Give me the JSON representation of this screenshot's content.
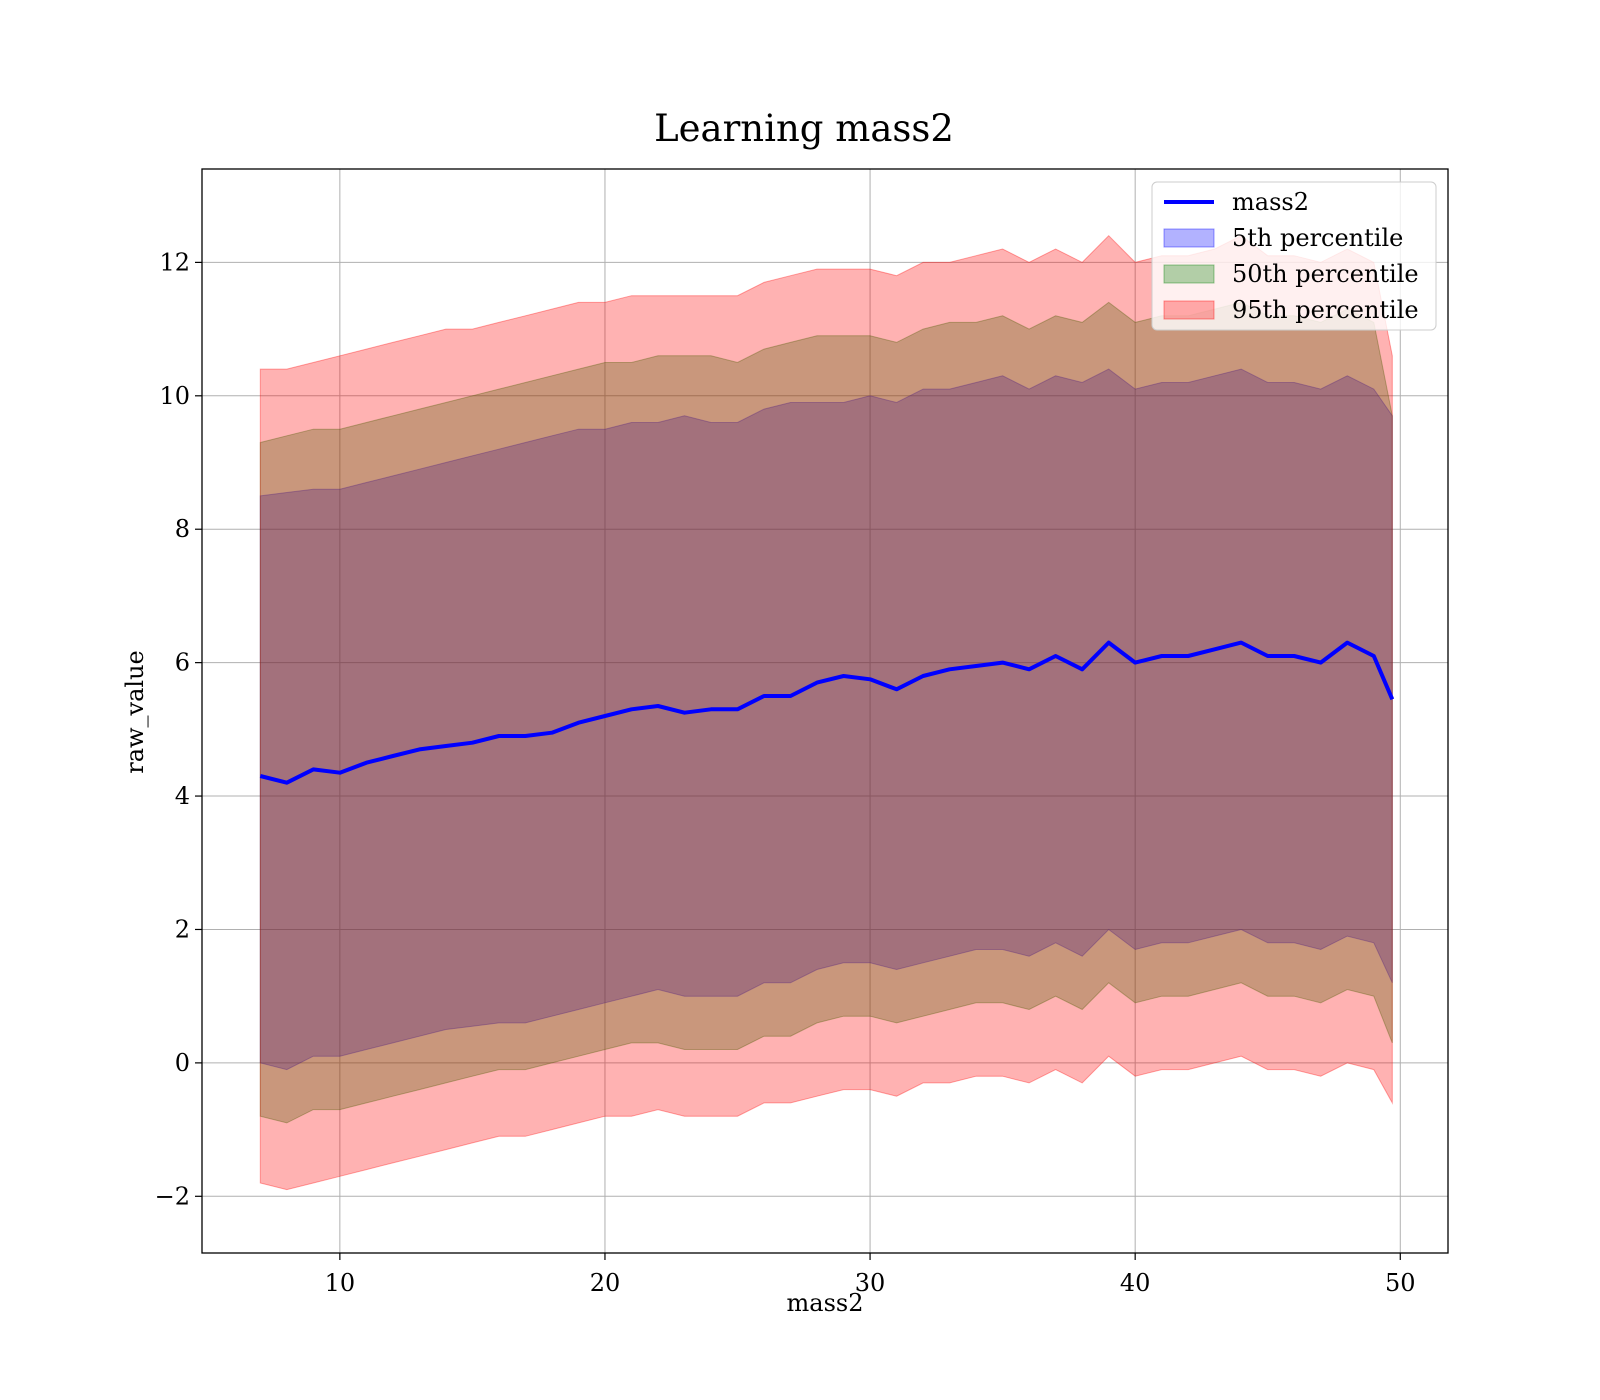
{
  "chart_data": {
    "type": "line",
    "title": "Learning mass2",
    "xlabel": "mass2",
    "ylabel": "raw_value",
    "xlim": [
      4.8,
      51.8
    ],
    "ylim": [
      -2.85,
      13.4
    ],
    "x_ticks": [
      10,
      20,
      30,
      40,
      50
    ],
    "y_ticks": [
      -2,
      0,
      2,
      4,
      6,
      8,
      10,
      12
    ],
    "x_tick_labels": [
      "10",
      "20",
      "30",
      "40",
      "50"
    ],
    "y_tick_labels": [
      "−2",
      "0",
      "2",
      "4",
      "6",
      "8",
      "10",
      "12"
    ],
    "grid": true,
    "legend_position": "top-right",
    "colors": {
      "line": "#0000ff",
      "band_5": "#0000ff",
      "band_50": "#008000",
      "band_95": "#ff0000"
    },
    "x": [
      7,
      8,
      9,
      10,
      11,
      12,
      13,
      14,
      15,
      16,
      17,
      18,
      19,
      20,
      21,
      22,
      23,
      24,
      25,
      26,
      27,
      28,
      29,
      30,
      31,
      32,
      33,
      34,
      35,
      36,
      37,
      38,
      39,
      40,
      41,
      42,
      43,
      44,
      45,
      46,
      47,
      48,
      49,
      49.7
    ],
    "series": [
      {
        "name": "mass2",
        "kind": "line",
        "values": [
          4.3,
          4.2,
          4.4,
          4.35,
          4.5,
          4.6,
          4.7,
          4.75,
          4.8,
          4.9,
          4.9,
          4.95,
          5.1,
          5.2,
          5.3,
          5.35,
          5.25,
          5.3,
          5.3,
          5.5,
          5.5,
          5.7,
          5.8,
          5.75,
          5.6,
          5.8,
          5.9,
          5.95,
          6.0,
          5.9,
          6.1,
          5.9,
          6.3,
          6.0,
          6.1,
          6.1,
          6.2,
          6.3,
          6.1,
          6.1,
          6.0,
          6.3,
          6.1,
          5.45
        ]
      },
      {
        "name": "5th percentile",
        "kind": "band",
        "upper": [
          8.5,
          8.55,
          8.6,
          8.6,
          8.7,
          8.8,
          8.9,
          9.0,
          9.1,
          9.2,
          9.3,
          9.4,
          9.5,
          9.5,
          9.6,
          9.6,
          9.7,
          9.6,
          9.6,
          9.8,
          9.9,
          9.9,
          9.9,
          10.0,
          9.9,
          10.1,
          10.1,
          10.2,
          10.3,
          10.1,
          10.3,
          10.2,
          10.4,
          10.1,
          10.2,
          10.2,
          10.3,
          10.4,
          10.2,
          10.2,
          10.1,
          10.3,
          10.1,
          9.7
        ],
        "lower": [
          0.0,
          -0.1,
          0.1,
          0.1,
          0.2,
          0.3,
          0.4,
          0.5,
          0.55,
          0.6,
          0.6,
          0.7,
          0.8,
          0.9,
          1.0,
          1.1,
          1.0,
          1.0,
          1.0,
          1.2,
          1.2,
          1.4,
          1.5,
          1.5,
          1.4,
          1.5,
          1.6,
          1.7,
          1.7,
          1.6,
          1.8,
          1.6,
          2.0,
          1.7,
          1.8,
          1.8,
          1.9,
          2.0,
          1.8,
          1.8,
          1.7,
          1.9,
          1.8,
          1.2
        ]
      },
      {
        "name": "50th percentile",
        "kind": "band",
        "upper": [
          9.3,
          9.4,
          9.5,
          9.5,
          9.6,
          9.7,
          9.8,
          9.9,
          10.0,
          10.1,
          10.2,
          10.3,
          10.4,
          10.5,
          10.5,
          10.6,
          10.6,
          10.6,
          10.5,
          10.7,
          10.8,
          10.9,
          10.9,
          10.9,
          10.8,
          11.0,
          11.1,
          11.1,
          11.2,
          11.0,
          11.2,
          11.1,
          11.4,
          11.1,
          11.2,
          11.2,
          11.3,
          11.4,
          11.2,
          11.2,
          11.1,
          11.3,
          11.1,
          9.7
        ],
        "lower": [
          -0.8,
          -0.9,
          -0.7,
          -0.7,
          -0.6,
          -0.5,
          -0.4,
          -0.3,
          -0.2,
          -0.1,
          -0.1,
          0.0,
          0.1,
          0.2,
          0.3,
          0.3,
          0.2,
          0.2,
          0.2,
          0.4,
          0.4,
          0.6,
          0.7,
          0.7,
          0.6,
          0.7,
          0.8,
          0.9,
          0.9,
          0.8,
          1.0,
          0.8,
          1.2,
          0.9,
          1.0,
          1.0,
          1.1,
          1.2,
          1.0,
          1.0,
          0.9,
          1.1,
          1.0,
          0.3
        ]
      },
      {
        "name": "95th percentile",
        "kind": "band",
        "upper": [
          10.4,
          10.4,
          10.5,
          10.6,
          10.7,
          10.8,
          10.9,
          11.0,
          11.0,
          11.1,
          11.2,
          11.3,
          11.4,
          11.4,
          11.5,
          11.5,
          11.5,
          11.5,
          11.5,
          11.7,
          11.8,
          11.9,
          11.9,
          11.9,
          11.8,
          12.0,
          12.0,
          12.1,
          12.2,
          12.0,
          12.2,
          12.0,
          12.4,
          12.0,
          12.1,
          12.1,
          12.2,
          12.4,
          12.1,
          12.1,
          12.0,
          12.2,
          12.0,
          10.6
        ],
        "lower": [
          -1.8,
          -1.9,
          -1.8,
          -1.7,
          -1.6,
          -1.5,
          -1.4,
          -1.3,
          -1.2,
          -1.1,
          -1.1,
          -1.0,
          -0.9,
          -0.8,
          -0.8,
          -0.7,
          -0.8,
          -0.8,
          -0.8,
          -0.6,
          -0.6,
          -0.5,
          -0.4,
          -0.4,
          -0.5,
          -0.3,
          -0.3,
          -0.2,
          -0.2,
          -0.3,
          -0.1,
          -0.3,
          0.1,
          -0.2,
          -0.1,
          -0.1,
          0.0,
          0.1,
          -0.1,
          -0.1,
          -0.2,
          0.0,
          -0.1,
          -0.6
        ]
      }
    ]
  }
}
